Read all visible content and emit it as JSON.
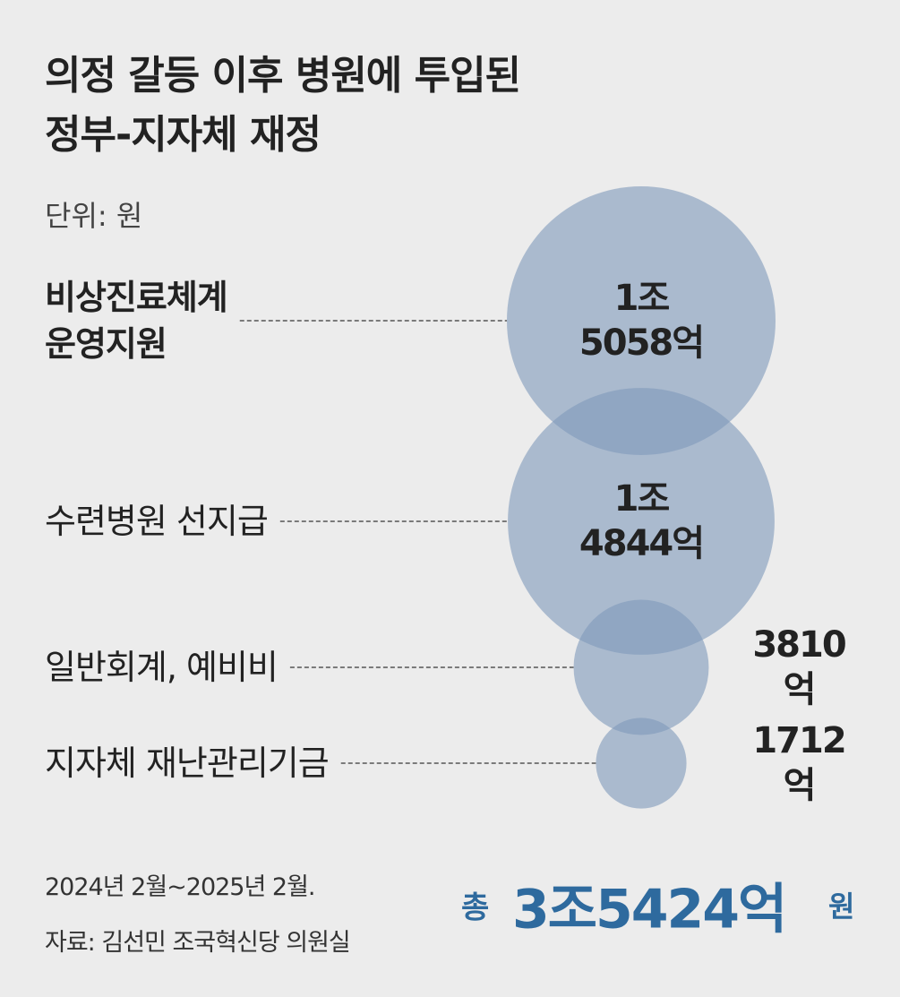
{
  "chart_data": {
    "type": "bubble",
    "title": "의정 갈등 이후 병원에 투입된\n정부-지자체 재정",
    "subtitle": "단위: 원",
    "categories": [
      "비상진료체계\n운영지원",
      "수련병원 선지급",
      "일반회계, 예비비",
      "지자체 재난관리기금"
    ],
    "values": [
      15058,
      14844,
      3810,
      1712
    ],
    "value_labels": [
      "1조\n5058억",
      "1조\n4844억",
      "3810억",
      "1712억"
    ],
    "color": "#7f9aba",
    "total": {
      "prefix": "총",
      "value": 35424,
      "label": "3조5424억",
      "unit": "원"
    },
    "notes": [
      "2024년 2월~2025년 2월.",
      "자료: 김선민 조국혁신당 의원실"
    ]
  }
}
